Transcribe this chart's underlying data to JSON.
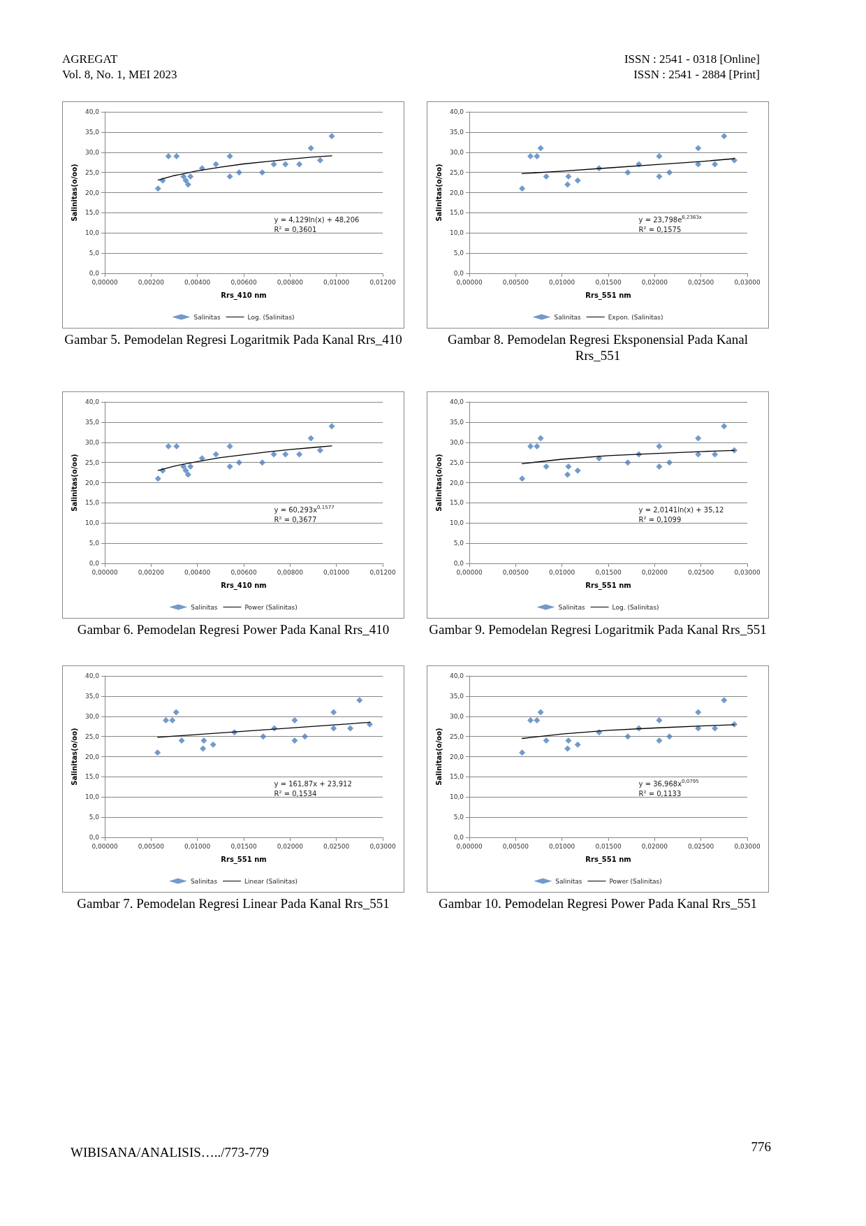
{
  "chart_data": [
    {
      "type": "scatter",
      "xlabel": "Rrs_410 nm",
      "ylabel": "Salinitas(o/oo)",
      "grid": "y",
      "legend": "bottom",
      "xlim": [
        0,
        0.012
      ],
      "xticks": [
        {
          "value": 0,
          "label": "0,00000"
        },
        {
          "value": 0.002,
          "label": "0,00200"
        },
        {
          "value": 0.004,
          "label": "0,00400"
        },
        {
          "value": 0.006,
          "label": "0,00600"
        },
        {
          "value": 0.008,
          "label": "0,00800"
        },
        {
          "value": 0.01,
          "label": "0,01000"
        },
        {
          "value": 0.012,
          "label": "0,01200"
        }
      ],
      "ylim": [
        0,
        40
      ],
      "yticks": [
        {
          "value": 0,
          "label": "0,0"
        },
        {
          "value": 5,
          "label": "5,0"
        },
        {
          "value": 10,
          "label": "10,0"
        },
        {
          "value": 15,
          "label": "15,0"
        },
        {
          "value": 20,
          "label": "20,0"
        },
        {
          "value": 25,
          "label": "25,0"
        },
        {
          "value": 30,
          "label": "30,0"
        },
        {
          "value": 35,
          "label": "35,0"
        },
        {
          "value": 40,
          "label": "40,0"
        }
      ],
      "series": [
        {
          "name": "Salinitas",
          "marker": "diamond",
          "color": "#4f81bd",
          "x": [
            0.0023,
            0.0025,
            0.00275,
            0.0031,
            0.0034,
            0.0035,
            0.0036,
            0.0037,
            0.0042,
            0.0048,
            0.0054,
            0.0054,
            0.0058,
            0.0068,
            0.0073,
            0.0078,
            0.0084,
            0.0089,
            0.0093,
            0.0098
          ],
          "values": [
            21,
            23,
            29,
            29,
            24,
            23,
            22,
            24,
            26,
            27,
            29,
            24,
            25,
            25,
            27,
            27,
            27,
            31,
            28,
            34
          ]
        },
        {
          "name": "Log. (Salinitas)",
          "type": "line",
          "marker": "none",
          "color": "#000000",
          "x": [
            0.0023,
            0.003,
            0.004,
            0.005,
            0.006,
            0.007,
            0.008,
            0.009,
            0.0098
          ],
          "values": [
            23.1,
            24.2,
            25.4,
            26.3,
            27.1,
            27.7,
            28.3,
            28.8,
            29.1
          ]
        }
      ],
      "annotations": [
        "y = 4,129ln(x) + 48,206",
        "R² = 0,3601",
        "Gambar 5. Pemodelan Regresi Logaritmik Pada Kanal Rrs_410",
        "AGREGAT",
        "Vol. 8, No. 1, MEI 2023",
        "ISSN : 2541 - 0318 [Online]",
        "ISSN : 2541 - 2884 [Print]"
      ]
    },
    {
      "type": "scatter",
      "xlabel": "Rrs_551 nm",
      "ylabel": "Salinitas(o/oo)",
      "grid": "y",
      "legend": "bottom",
      "xlim": [
        0,
        0.03
      ],
      "xticks": [
        {
          "value": 0,
          "label": "0,00000"
        },
        {
          "value": 0.005,
          "label": "0,00500"
        },
        {
          "value": 0.01,
          "label": "0,01000"
        },
        {
          "value": 0.015,
          "label": "0,01500"
        },
        {
          "value": 0.02,
          "label": "0,02000"
        },
        {
          "value": 0.025,
          "label": "0,02500"
        },
        {
          "value": 0.03,
          "label": "0,03000"
        }
      ],
      "ylim": [
        0,
        40
      ],
      "yticks": [
        {
          "value": 0,
          "label": "0,0"
        },
        {
          "value": 5,
          "label": "5,0"
        },
        {
          "value": 10,
          "label": "10,0"
        },
        {
          "value": 15,
          "label": "15,0"
        },
        {
          "value": 20,
          "label": "20,0"
        },
        {
          "value": 25,
          "label": "25,0"
        },
        {
          "value": 30,
          "label": "30,0"
        },
        {
          "value": 35,
          "label": "35,0"
        },
        {
          "value": 40,
          "label": "40,0"
        }
      ],
      "series": [
        {
          "name": "Salinitas",
          "marker": "diamond",
          "color": "#4f81bd",
          "x": [
            0.0057,
            0.0066,
            0.0073,
            0.0077,
            0.0083,
            0.0106,
            0.0107,
            0.0117,
            0.014,
            0.0171,
            0.0183,
            0.0205,
            0.0205,
            0.0216,
            0.0247,
            0.0247,
            0.0265,
            0.0275,
            0.0286
          ],
          "values": [
            21,
            29,
            29,
            31,
            24,
            22,
            24,
            23,
            26,
            25,
            27,
            29,
            24,
            25,
            31,
            27,
            27,
            34,
            28
          ]
        },
        {
          "name": "Expon. (Salinitas)",
          "type": "line",
          "marker": "none",
          "color": "#000000",
          "x": [
            0.0057,
            0.01,
            0.015,
            0.02,
            0.025,
            0.0286
          ],
          "values": [
            24.7,
            25.3,
            26.1,
            26.9,
            27.7,
            28.4
          ]
        }
      ],
      "annotations": [
        "y = 23,798e$^{6,2363x}$",
        "R² = 0,1575",
        "Gambar 8. Pemodelan Regresi Eksponensial Pada Kanal Rrs_551"
      ]
    },
    {
      "type": "scatter",
      "xlabel": "Rrs_410 nm",
      "ylabel": "Salinitas(o/oo)",
      "grid": "y",
      "legend": "bottom",
      "xlim": [
        0,
        0.012
      ],
      "xticks": [
        {
          "value": 0,
          "label": "0,00000"
        },
        {
          "value": 0.002,
          "label": "0,00200"
        },
        {
          "value": 0.004,
          "label": "0,00400"
        },
        {
          "value": 0.006,
          "label": "0,00600"
        },
        {
          "value": 0.008,
          "label": "0,00800"
        },
        {
          "value": 0.01,
          "label": "0,01000"
        },
        {
          "value": 0.012,
          "label": "0,01200"
        }
      ],
      "ylim": [
        0,
        40
      ],
      "yticks": [
        {
          "value": 0,
          "label": "0,0"
        },
        {
          "value": 5,
          "label": "5,0"
        },
        {
          "value": 10,
          "label": "10,0"
        },
        {
          "value": 15,
          "label": "15,0"
        },
        {
          "value": 20,
          "label": "20,0"
        },
        {
          "value": 25,
          "label": "25,0"
        },
        {
          "value": 30,
          "label": "30,0"
        },
        {
          "value": 35,
          "label": "35,0"
        },
        {
          "value": 40,
          "label": "40,0"
        }
      ],
      "series": [
        {
          "name": "Salinitas",
          "marker": "diamond",
          "color": "#4f81bd",
          "x": [
            0.0023,
            0.0025,
            0.00275,
            0.0031,
            0.0034,
            0.0035,
            0.0036,
            0.0037,
            0.0042,
            0.0048,
            0.0054,
            0.0054,
            0.0058,
            0.0068,
            0.0073,
            0.0078,
            0.0084,
            0.0089,
            0.0093,
            0.0098
          ],
          "values": [
            21,
            23,
            29,
            29,
            24,
            23,
            22,
            24,
            26,
            27,
            29,
            24,
            25,
            25,
            27,
            27,
            27,
            31,
            28,
            34
          ]
        },
        {
          "name": "Power (Salinitas)",
          "type": "line",
          "marker": "none",
          "color": "#000000",
          "x": [
            0.0023,
            0.003,
            0.004,
            0.005,
            0.006,
            0.007,
            0.008,
            0.009,
            0.0098
          ],
          "values": [
            23.0,
            24.1,
            25.2,
            26.2,
            26.9,
            27.6,
            28.2,
            28.7,
            29.1
          ]
        }
      ],
      "annotations": [
        "y = 60,293x$^{0,1577}$",
        "R² = 0,3677",
        "Gambar 6. Pemodelan Regresi Power Pada Kanal Rrs_410"
      ]
    },
    {
      "type": "scatter",
      "xlabel": "Rrs_551 nm",
      "ylabel": "Salinitas(o/oo)",
      "grid": "y",
      "legend": "bottom",
      "xlim": [
        0,
        0.03
      ],
      "xticks": [
        {
          "value": 0,
          "label": "0,00000"
        },
        {
          "value": 0.005,
          "label": "0,00500"
        },
        {
          "value": 0.01,
          "label": "0,01000"
        },
        {
          "value": 0.015,
          "label": "0,01500"
        },
        {
          "value": 0.02,
          "label": "0,02000"
        },
        {
          "value": 0.025,
          "label": "0,02500"
        },
        {
          "value": 0.03,
          "label": "0,03000"
        }
      ],
      "ylim": [
        0,
        40
      ],
      "yticks": [
        {
          "value": 0,
          "label": "0,0"
        },
        {
          "value": 5,
          "label": "5,0"
        },
        {
          "value": 10,
          "label": "10,0"
        },
        {
          "value": 15,
          "label": "15,0"
        },
        {
          "value": 20,
          "label": "20,0"
        },
        {
          "value": 25,
          "label": "25,0"
        },
        {
          "value": 30,
          "label": "30,0"
        },
        {
          "value": 35,
          "label": "35,0"
        },
        {
          "value": 40,
          "label": "40,0"
        }
      ],
      "series": [
        {
          "name": "Salinitas",
          "marker": "diamond",
          "color": "#4f81bd",
          "x": [
            0.0057,
            0.0066,
            0.0073,
            0.0077,
            0.0083,
            0.0106,
            0.0107,
            0.0117,
            0.014,
            0.0171,
            0.0183,
            0.0205,
            0.0205,
            0.0216,
            0.0247,
            0.0247,
            0.0265,
            0.0275,
            0.0286
          ],
          "values": [
            21,
            29,
            29,
            31,
            24,
            22,
            24,
            23,
            26,
            25,
            27,
            29,
            24,
            25,
            31,
            27,
            27,
            34,
            28
          ]
        },
        {
          "name": "Log. (Salinitas)",
          "type": "line",
          "marker": "none",
          "color": "#000000",
          "x": [
            0.0057,
            0.01,
            0.015,
            0.02,
            0.025,
            0.0286
          ],
          "values": [
            24.7,
            25.8,
            26.7,
            27.2,
            27.7,
            28.0
          ]
        }
      ],
      "annotations": [
        "y = 2,0141ln(x) + 35,12",
        "R² = 0,1099",
        "Gambar 9. Pemodelan Regresi Logaritmik Pada Kanal Rrs_551"
      ]
    },
    {
      "type": "scatter",
      "xlabel": "Rrs_551 nm",
      "ylabel": "Salinitas(o/oo)",
      "grid": "y",
      "legend": "bottom",
      "xlim": [
        0,
        0.03
      ],
      "xticks": [
        {
          "value": 0,
          "label": "0,00000"
        },
        {
          "value": 0.005,
          "label": "0,00500"
        },
        {
          "value": 0.01,
          "label": "0,01000"
        },
        {
          "value": 0.015,
          "label": "0,01500"
        },
        {
          "value": 0.02,
          "label": "0,02000"
        },
        {
          "value": 0.025,
          "label": "0,02500"
        },
        {
          "value": 0.03,
          "label": "0,03000"
        }
      ],
      "ylim": [
        0,
        40
      ],
      "yticks": [
        {
          "value": 0,
          "label": "0,0"
        },
        {
          "value": 5,
          "label": "5,0"
        },
        {
          "value": 10,
          "label": "10,0"
        },
        {
          "value": 15,
          "label": "15,0"
        },
        {
          "value": 20,
          "label": "20,0"
        },
        {
          "value": 25,
          "label": "25,0"
        },
        {
          "value": 30,
          "label": "30,0"
        },
        {
          "value": 35,
          "label": "35,0"
        },
        {
          "value": 40,
          "label": "40,0"
        }
      ],
      "series": [
        {
          "name": "Salinitas",
          "marker": "diamond",
          "color": "#4f81bd",
          "x": [
            0.0057,
            0.0066,
            0.0073,
            0.0077,
            0.0083,
            0.0106,
            0.0107,
            0.0117,
            0.014,
            0.0171,
            0.0183,
            0.0205,
            0.0205,
            0.0216,
            0.0247,
            0.0247,
            0.0265,
            0.0275,
            0.0286
          ],
          "values": [
            21,
            29,
            29,
            31,
            24,
            22,
            24,
            23,
            26,
            25,
            27,
            29,
            24,
            25,
            31,
            27,
            27,
            34,
            28
          ]
        },
        {
          "name": "Linear (Salinitas)",
          "type": "line",
          "marker": "none",
          "color": "#000000",
          "x": [
            0.0057,
            0.0286
          ],
          "values": [
            24.8,
            28.5
          ]
        }
      ],
      "annotations": [
        "y = 161,87x + 23,912",
        "R² = 0,1534",
        "Gambar 7. Pemodelan Regresi Linear Pada Kanal Rrs_551"
      ]
    },
    {
      "type": "scatter",
      "xlabel": "Rrs_551 nm",
      "ylabel": "Salinitas(o/oo)",
      "grid": "y",
      "legend": "bottom",
      "xlim": [
        0,
        0.03
      ],
      "xticks": [
        {
          "value": 0,
          "label": "0,00000"
        },
        {
          "value": 0.005,
          "label": "0,00500"
        },
        {
          "value": 0.01,
          "label": "0,01000"
        },
        {
          "value": 0.015,
          "label": "0,01500"
        },
        {
          "value": 0.02,
          "label": "0,02000"
        },
        {
          "value": 0.025,
          "label": "0,02500"
        },
        {
          "value": 0.03,
          "label": "0,03000"
        }
      ],
      "ylim": [
        0,
        40
      ],
      "yticks": [
        {
          "value": 0,
          "label": "0,0"
        },
        {
          "value": 5,
          "label": "5,0"
        },
        {
          "value": 10,
          "label": "10,0"
        },
        {
          "value": 15,
          "label": "15,0"
        },
        {
          "value": 20,
          "label": "20,0"
        },
        {
          "value": 25,
          "label": "25,0"
        },
        {
          "value": 30,
          "label": "30,0"
        },
        {
          "value": 35,
          "label": "35,0"
        },
        {
          "value": 40,
          "label": "40,0"
        }
      ],
      "series": [
        {
          "name": "Salinitas",
          "marker": "diamond",
          "color": "#4f81bd",
          "x": [
            0.0057,
            0.0066,
            0.0073,
            0.0077,
            0.0083,
            0.0106,
            0.0107,
            0.0117,
            0.014,
            0.0171,
            0.0183,
            0.0205,
            0.0205,
            0.0216,
            0.0247,
            0.0247,
            0.0265,
            0.0275,
            0.0286
          ],
          "values": [
            21,
            29,
            29,
            31,
            24,
            22,
            24,
            23,
            26,
            25,
            27,
            29,
            24,
            25,
            31,
            27,
            27,
            34,
            28
          ]
        },
        {
          "name": "Power (Salinitas)",
          "type": "line",
          "marker": "none",
          "color": "#000000",
          "x": [
            0.0057,
            0.01,
            0.015,
            0.02,
            0.025,
            0.0286
          ],
          "values": [
            24.5,
            25.6,
            26.5,
            27.1,
            27.6,
            27.9
          ]
        }
      ],
      "annotations": [
        "y = 36,968x$^{0,0795}$",
        "R² = 0,1133",
        "Gambar 10. Pemodelan Regresi Power Pada Kanal Rrs_551",
        "WIBISANA/ANALISIS…../773-779",
        "776"
      ]
    }
  ]
}
